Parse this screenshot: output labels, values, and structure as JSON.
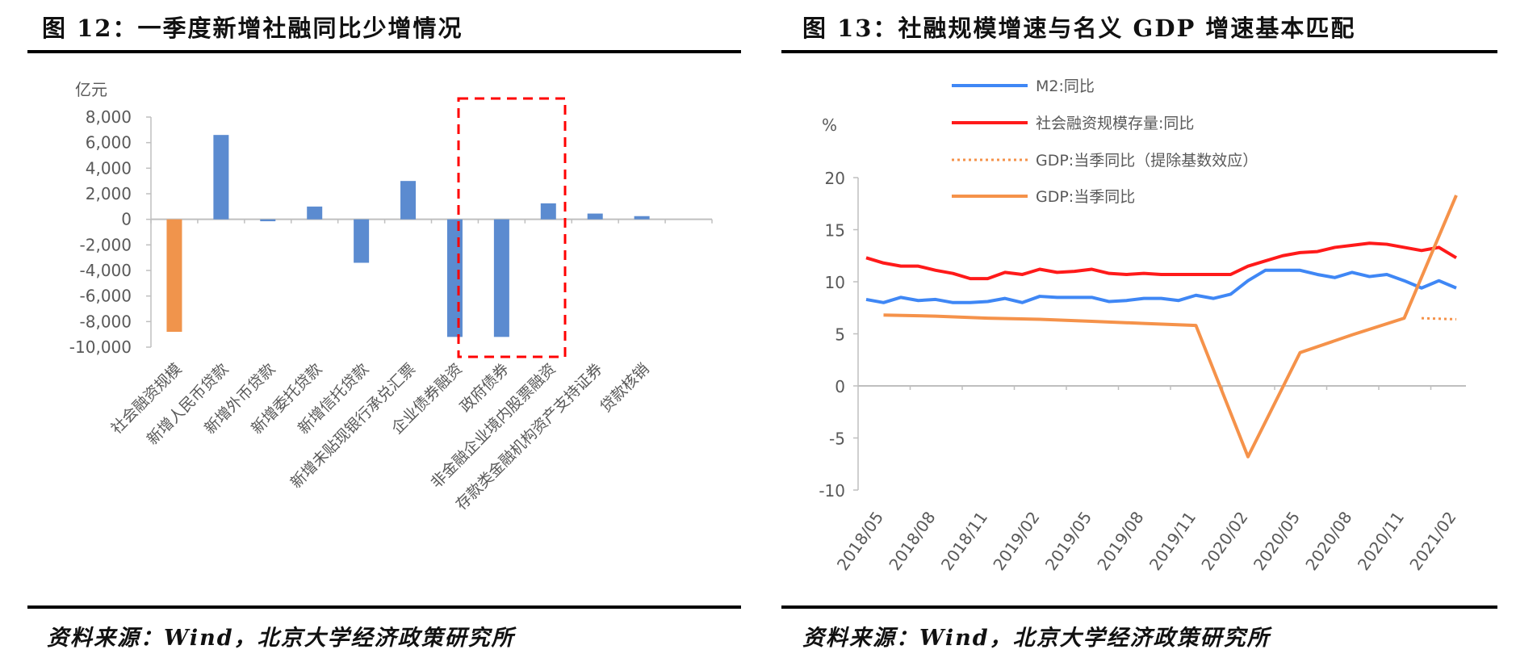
{
  "left": {
    "title": "图 12：一季度新增社融同比少增情况",
    "source": "资料来源：Wind，北京大学经济政策研究所"
  },
  "right": {
    "title": "图 13：社融规模增速与名义 GDP 增速基本匹配",
    "source": "资料来源：Wind，北京大学经济政策研究所"
  },
  "chart_data": [
    {
      "type": "bar",
      "ylabel": "亿元",
      "ylim": [
        -10000,
        8000
      ],
      "yticks": [
        "8,000",
        "6,000",
        "4,000",
        "2,000",
        "0",
        "-2,000",
        "-4,000",
        "-6,000",
        "-8,000",
        "-10,000"
      ],
      "categories": [
        "社会融资规模",
        "新增人民币贷款",
        "新增外币贷款",
        "新增委托贷款",
        "新增信托贷款",
        "新增未贴现银行承兑汇票",
        "企业债券融资",
        "政府债券",
        "非金融企业境内股票融资",
        "存款类金融机构资产支持证券",
        "贷款核销"
      ],
      "values": [
        -8800,
        6600,
        -150,
        1000,
        -3400,
        3000,
        -9200,
        -9200,
        1250,
        450,
        250
      ],
      "colors": [
        "#F0944C",
        "#5B8BD0",
        "#5B8BD0",
        "#5B8BD0",
        "#5B8BD0",
        "#5B8BD0",
        "#5B8BD0",
        "#5B8BD0",
        "#5B8BD0",
        "#5B8BD0",
        "#5B8BD0"
      ],
      "highlight": {
        "categories": [
          "企业债券融资",
          "政府债券"
        ],
        "style": "red dashed box",
        "color": "#FF0000"
      },
      "grid": false
    },
    {
      "type": "line",
      "ylabel": "%",
      "ylim": [
        -10,
        20
      ],
      "yticks": [
        "20",
        "15",
        "10",
        "5",
        "0",
        "-5",
        "-10"
      ],
      "xticks": [
        "2018/05",
        "2018/08",
        "2018/11",
        "2019/02",
        "2019/05",
        "2019/08",
        "2019/11",
        "2020/02",
        "2020/05",
        "2020/08",
        "2020/11",
        "2021/02"
      ],
      "x": [
        "2018/05",
        "2018/06",
        "2018/07",
        "2018/08",
        "2018/09",
        "2018/10",
        "2018/11",
        "2018/12",
        "2019/01",
        "2019/02",
        "2019/03",
        "2019/04",
        "2019/05",
        "2019/06",
        "2019/07",
        "2019/08",
        "2019/09",
        "2019/10",
        "2019/11",
        "2019/12",
        "2020/01",
        "2020/02",
        "2020/03",
        "2020/04",
        "2020/05",
        "2020/06",
        "2020/07",
        "2020/08",
        "2020/09",
        "2020/10",
        "2020/11",
        "2020/12",
        "2021/01",
        "2021/02",
        "2021/03"
      ],
      "legend_position": "top-left",
      "grid": false,
      "series": [
        {
          "name": "M2:同比",
          "color": "#3F87F5",
          "style": "solid",
          "values": [
            8.3,
            8.0,
            8.5,
            8.2,
            8.3,
            8.0,
            8.0,
            8.1,
            8.4,
            8.0,
            8.6,
            8.5,
            8.5,
            8.5,
            8.1,
            8.2,
            8.4,
            8.4,
            8.2,
            8.7,
            8.4,
            8.8,
            10.1,
            11.1,
            11.1,
            11.1,
            10.7,
            10.4,
            10.9,
            10.5,
            10.7,
            10.1,
            9.4,
            10.1,
            9.4
          ]
        },
        {
          "name": "社会融资规模存量:同比",
          "color": "#FF1A1A",
          "style": "solid",
          "values": [
            12.3,
            11.8,
            11.5,
            11.5,
            11.1,
            10.8,
            10.3,
            10.3,
            10.9,
            10.7,
            11.2,
            10.9,
            11.0,
            11.2,
            10.8,
            10.7,
            10.8,
            10.7,
            10.7,
            10.7,
            10.7,
            10.7,
            11.5,
            12.0,
            12.5,
            12.8,
            12.9,
            13.3,
            13.5,
            13.7,
            13.6,
            13.3,
            13.0,
            13.3,
            12.3
          ]
        },
        {
          "name": "GDP:当季同比（提除基数效应）",
          "color": "#F5924A",
          "style": "dotted",
          "points": [
            [
              "2021/01",
              6.5
            ],
            [
              "2021/03",
              6.4
            ]
          ]
        },
        {
          "name": "GDP:当季同比",
          "color": "#F5924A",
          "style": "solid",
          "points": [
            [
              "2018/06",
              6.8
            ],
            [
              "2018/09",
              6.7
            ],
            [
              "2018/12",
              6.5
            ],
            [
              "2019/03",
              6.4
            ],
            [
              "2019/06",
              6.2
            ],
            [
              "2019/09",
              6.0
            ],
            [
              "2019/12",
              5.8
            ],
            [
              "2020/03",
              -6.8
            ],
            [
              "2020/06",
              3.2
            ],
            [
              "2020/09",
              4.9
            ],
            [
              "2020/12",
              6.5
            ],
            [
              "2021/03",
              18.3
            ]
          ]
        }
      ]
    }
  ]
}
